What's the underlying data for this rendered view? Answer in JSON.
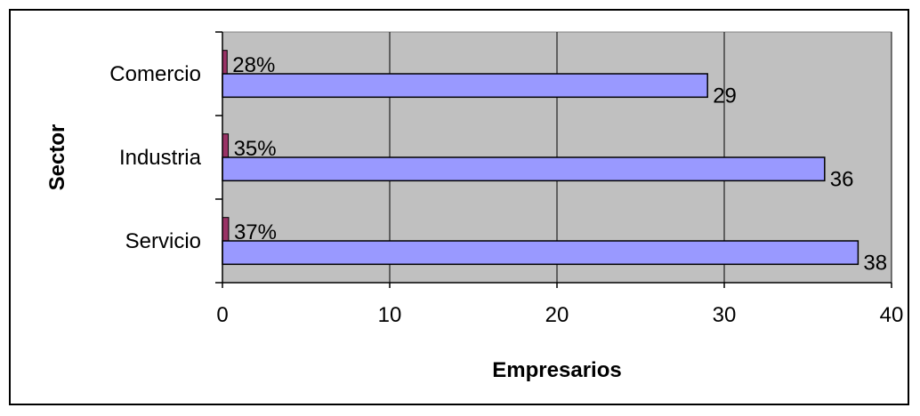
{
  "chart_data": {
    "type": "bar",
    "orientation": "horizontal",
    "categories": [
      "Comercio",
      "Industria",
      "Servicio"
    ],
    "series": [
      {
        "name": "",
        "color": "#9999FF",
        "values": [
          29,
          36,
          38
        ],
        "labels": [
          "29",
          "36",
          "38"
        ]
      },
      {
        "name": "",
        "color": "#993366",
        "values": [
          0.28,
          0.35,
          0.37
        ],
        "labels": [
          "28%",
          "35%",
          "37%"
        ]
      }
    ],
    "title": "",
    "xlabel": "Empresarios",
    "ylabel": "Sector",
    "xlim": [
      0,
      40
    ],
    "xticks": [
      0,
      10,
      20,
      30,
      40
    ],
    "grid": "vertical",
    "plot_background": "#C0C0C0",
    "legend": "none"
  }
}
